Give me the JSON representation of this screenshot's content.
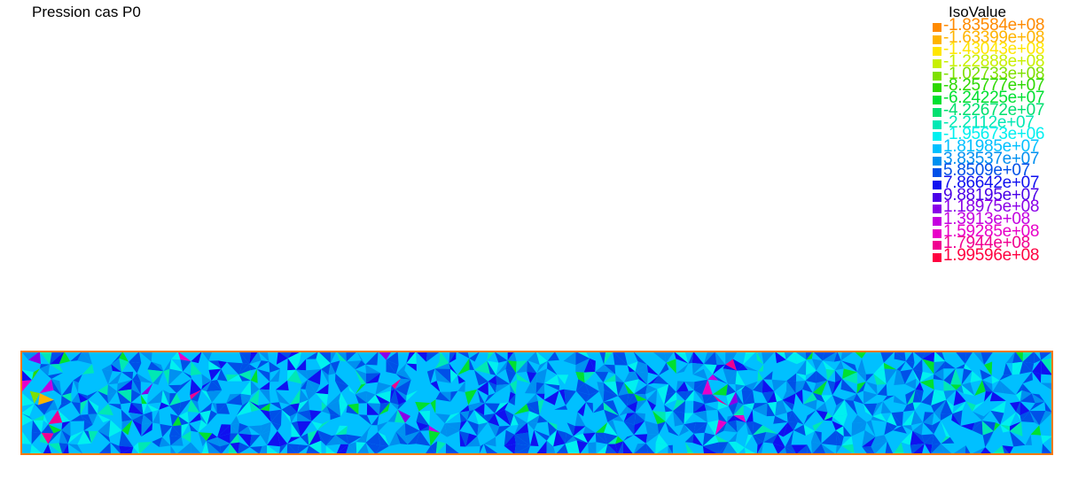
{
  "chart_data": {
    "type": "heatmap",
    "title": "Pression cas P0",
    "legend_title": "IsoValue",
    "legend_placement": "top-right",
    "levels": [
      {
        "label": "-1.83584e+08",
        "value": -183584000,
        "color": "#ff8a00"
      },
      {
        "label": "-1.63399e+08",
        "value": -163399000,
        "color": "#ffb400"
      },
      {
        "label": "-1.43043e+08",
        "value": -143043000,
        "color": "#ffe600"
      },
      {
        "label": "-1.22888e+08",
        "value": -122888000,
        "color": "#c8f000"
      },
      {
        "label": "-1.02733e+08",
        "value": -102733000,
        "color": "#7ee000"
      },
      {
        "label": "-8.25777e+07",
        "value": -82577700,
        "color": "#2ed800"
      },
      {
        "label": "-6.24225e+07",
        "value": -62422500,
        "color": "#00e030"
      },
      {
        "label": "-4.22672e+07",
        "value": -42267200,
        "color": "#00e070"
      },
      {
        "label": "-2.2112e+07",
        "value": -22112000,
        "color": "#00e8b4"
      },
      {
        "label": "-1.95673e+06",
        "value": -1956730,
        "color": "#00f0f0"
      },
      {
        "label": "1.81985e+07",
        "value": 18198500,
        "color": "#00c0ff"
      },
      {
        "label": "3.83537e+07",
        "value": 38353700,
        "color": "#0090f0"
      },
      {
        "label": "5.8509e+07",
        "value": 58509000,
        "color": "#0050e8"
      },
      {
        "label": "7.86642e+07",
        "value": 78664200,
        "color": "#1010f0"
      },
      {
        "label": "9.88195e+07",
        "value": 98819500,
        "color": "#4a00e8"
      },
      {
        "label": "1.18975e+08",
        "value": 118975000,
        "color": "#8a00e8"
      },
      {
        "label": "1.3913e+08",
        "value": 139130000,
        "color": "#c400e0"
      },
      {
        "label": "1.59285e+08",
        "value": 159285000,
        "color": "#e800c8"
      },
      {
        "label": "1.7944e+08",
        "value": 179440000,
        "color": "#f00090"
      },
      {
        "label": "1.99596e+08",
        "value": 199596000,
        "color": "#ff0040"
      }
    ],
    "domain_border_color": "#ff7a00"
  }
}
